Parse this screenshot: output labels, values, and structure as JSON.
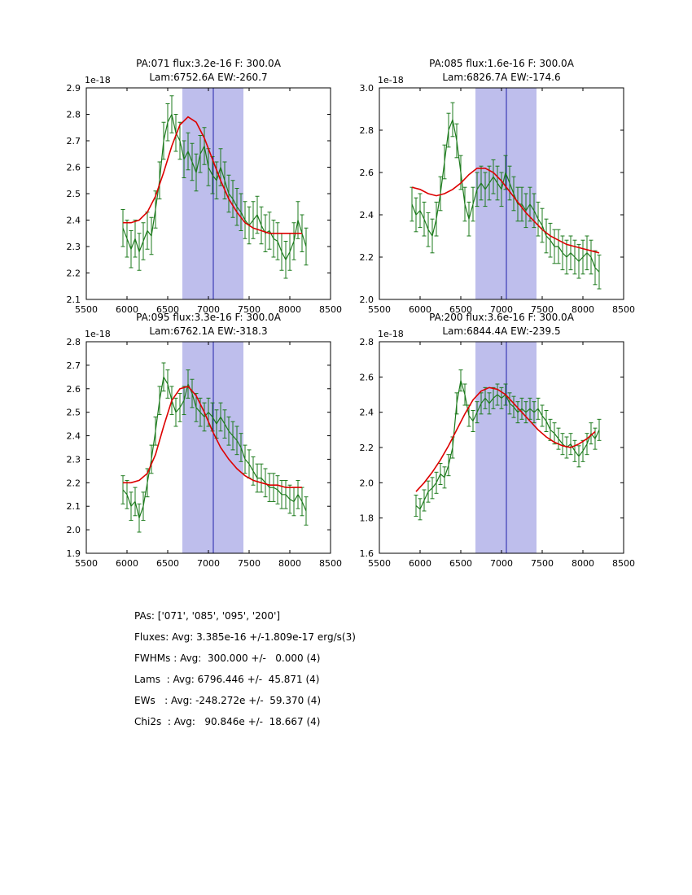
{
  "colors": {
    "data": "#1e7b1e",
    "fit": "#dd0000",
    "band": "#8888dd",
    "band_alpha": 0.55,
    "vline": "#2222aa",
    "axis": "#000000",
    "background": "#ffffff"
  },
  "chart_data": [
    {
      "type": "line",
      "title_line1": "PA:071 flux:3.2e-16 F: 300.0A",
      "title_line2": "Lam:6752.6A EW:-260.7",
      "xlabel": "",
      "ylabel": "",
      "y_offset_label": "1e-18",
      "xlim": [
        5500,
        8500
      ],
      "ylim": [
        2.1,
        2.9
      ],
      "xticks": [
        "5500",
        "6000",
        "6500",
        "7000",
        "7500",
        "8000",
        "8500"
      ],
      "yticks": [
        "2.1",
        "2.2",
        "2.3",
        "2.4",
        "2.5",
        "2.6",
        "2.7",
        "2.8",
        "2.9"
      ],
      "band": [
        6680,
        7430
      ],
      "vline": 7060,
      "series": [
        {
          "name": "data",
          "x0": 5950,
          "dx": 50,
          "yerr": 0.07,
          "y": [
            2.37,
            2.33,
            2.29,
            2.33,
            2.28,
            2.32,
            2.36,
            2.34,
            2.44,
            2.55,
            2.7,
            2.77,
            2.8,
            2.73,
            2.7,
            2.63,
            2.66,
            2.62,
            2.58,
            2.65,
            2.68,
            2.6,
            2.57,
            2.55,
            2.6,
            2.55,
            2.5,
            2.48,
            2.45,
            2.43,
            2.4,
            2.38,
            2.4,
            2.42,
            2.38,
            2.35,
            2.36,
            2.33,
            2.32,
            2.28,
            2.25,
            2.28,
            2.32,
            2.4,
            2.35,
            2.3
          ]
        },
        {
          "name": "fit",
          "x0": 5950,
          "dx": 100,
          "y": [
            2.39,
            2.39,
            2.4,
            2.43,
            2.49,
            2.58,
            2.68,
            2.76,
            2.79,
            2.77,
            2.71,
            2.63,
            2.55,
            2.48,
            2.43,
            2.39,
            2.37,
            2.36,
            2.35,
            2.35,
            2.35,
            2.35,
            2.35
          ]
        }
      ]
    },
    {
      "type": "line",
      "title_line1": "PA:085 flux:1.6e-16 F: 300.0A",
      "title_line2": "Lam:6826.7A EW:-174.6",
      "xlabel": "",
      "ylabel": "",
      "y_offset_label": "1e-18",
      "xlim": [
        5500,
        8500
      ],
      "ylim": [
        2.0,
        3.0
      ],
      "xticks": [
        "5500",
        "6000",
        "6500",
        "7000",
        "7500",
        "8000",
        "8500"
      ],
      "yticks": [
        "2.0",
        "2.2",
        "2.4",
        "2.6",
        "2.8",
        "3.0"
      ],
      "band": [
        6680,
        7430
      ],
      "vline": 7060,
      "series": [
        {
          "name": "data",
          "x0": 5900,
          "dx": 50,
          "yerr": 0.08,
          "y": [
            2.45,
            2.4,
            2.42,
            2.38,
            2.33,
            2.3,
            2.38,
            2.5,
            2.65,
            2.8,
            2.85,
            2.75,
            2.6,
            2.45,
            2.38,
            2.45,
            2.52,
            2.55,
            2.52,
            2.55,
            2.58,
            2.55,
            2.52,
            2.6,
            2.55,
            2.5,
            2.45,
            2.45,
            2.42,
            2.45,
            2.42,
            2.38,
            2.35,
            2.3,
            2.28,
            2.25,
            2.25,
            2.22,
            2.2,
            2.22,
            2.2,
            2.18,
            2.2,
            2.22,
            2.2,
            2.15,
            2.13
          ]
        },
        {
          "name": "fit",
          "x0": 5900,
          "dx": 100,
          "y": [
            2.53,
            2.52,
            2.5,
            2.49,
            2.5,
            2.52,
            2.55,
            2.59,
            2.62,
            2.62,
            2.6,
            2.56,
            2.51,
            2.46,
            2.41,
            2.37,
            2.33,
            2.3,
            2.28,
            2.26,
            2.25,
            2.24,
            2.23,
            2.22
          ]
        }
      ]
    },
    {
      "type": "line",
      "title_line1": "PA:095 flux:3.3e-16 F: 300.0A",
      "title_line2": "Lam:6762.1A EW:-318.3",
      "xlabel": "",
      "ylabel": "",
      "y_offset_label": "1e-18",
      "xlim": [
        5500,
        8500
      ],
      "ylim": [
        1.9,
        2.8
      ],
      "xticks": [
        "5500",
        "6000",
        "6500",
        "7000",
        "7500",
        "8000",
        "8500"
      ],
      "yticks": [
        "1.9",
        "2.0",
        "2.1",
        "2.2",
        "2.3",
        "2.4",
        "2.5",
        "2.6",
        "2.7",
        "2.8"
      ],
      "band": [
        6680,
        7430
      ],
      "vline": 7060,
      "series": [
        {
          "name": "data",
          "x0": 5950,
          "dx": 50,
          "yerr": 0.06,
          "y": [
            2.17,
            2.15,
            2.1,
            2.12,
            2.05,
            2.1,
            2.2,
            2.3,
            2.42,
            2.55,
            2.65,
            2.62,
            2.55,
            2.5,
            2.52,
            2.55,
            2.62,
            2.58,
            2.52,
            2.5,
            2.48,
            2.5,
            2.48,
            2.45,
            2.48,
            2.45,
            2.42,
            2.4,
            2.38,
            2.35,
            2.3,
            2.28,
            2.25,
            2.22,
            2.22,
            2.2,
            2.18,
            2.18,
            2.17,
            2.15,
            2.15,
            2.13,
            2.12,
            2.15,
            2.12,
            2.08
          ]
        },
        {
          "name": "fit",
          "x0": 5950,
          "dx": 100,
          "y": [
            2.2,
            2.2,
            2.21,
            2.24,
            2.32,
            2.44,
            2.55,
            2.6,
            2.61,
            2.57,
            2.5,
            2.42,
            2.35,
            2.3,
            2.26,
            2.23,
            2.21,
            2.2,
            2.19,
            2.19,
            2.18,
            2.18,
            2.18
          ]
        }
      ]
    },
    {
      "type": "line",
      "title_line1": "PA:200 flux:3.6e-16 F: 300.0A",
      "title_line2": "Lam:6844.4A EW:-239.5",
      "xlabel": "",
      "ylabel": "",
      "y_offset_label": "1e-18",
      "xlim": [
        5500,
        8500
      ],
      "ylim": [
        1.6,
        2.8
      ],
      "xticks": [
        "5500",
        "6000",
        "6500",
        "7000",
        "7500",
        "8000",
        "8500"
      ],
      "yticks": [
        "1.6",
        "1.8",
        "2.0",
        "2.2",
        "2.4",
        "2.6",
        "2.8"
      ],
      "band": [
        6680,
        7430
      ],
      "vline": 7060,
      "series": [
        {
          "name": "data",
          "x0": 5950,
          "dx": 50,
          "yerr": 0.06,
          "y": [
            1.87,
            1.85,
            1.9,
            1.95,
            1.97,
            2.0,
            2.05,
            2.03,
            2.1,
            2.2,
            2.45,
            2.58,
            2.5,
            2.38,
            2.35,
            2.4,
            2.45,
            2.48,
            2.45,
            2.48,
            2.5,
            2.48,
            2.5,
            2.45,
            2.43,
            2.4,
            2.42,
            2.4,
            2.42,
            2.4,
            2.42,
            2.38,
            2.35,
            2.3,
            2.28,
            2.25,
            2.22,
            2.2,
            2.22,
            2.18,
            2.15,
            2.18,
            2.22,
            2.28,
            2.25,
            2.3
          ]
        },
        {
          "name": "fit",
          "x0": 5950,
          "dx": 100,
          "y": [
            1.95,
            2.0,
            2.06,
            2.13,
            2.21,
            2.3,
            2.39,
            2.47,
            2.52,
            2.54,
            2.53,
            2.5,
            2.45,
            2.4,
            2.35,
            2.3,
            2.26,
            2.23,
            2.21,
            2.2,
            2.22,
            2.25,
            2.29
          ]
        }
      ]
    }
  ],
  "summary": {
    "lines": [
      "PAs: ['071', '085', '095', '200']",
      "Fluxes: Avg: 3.385e-16 +/-1.809e-17 erg/s(3)",
      "FWHMs : Avg:  300.000 +/-   0.000 (4)",
      "Lams  : Avg: 6796.446 +/-  45.871 (4)",
      "EWs   : Avg: -248.272e +/-  59.370 (4)",
      "Chi2s  : Avg:   90.846e +/-  18.667 (4)"
    ]
  }
}
